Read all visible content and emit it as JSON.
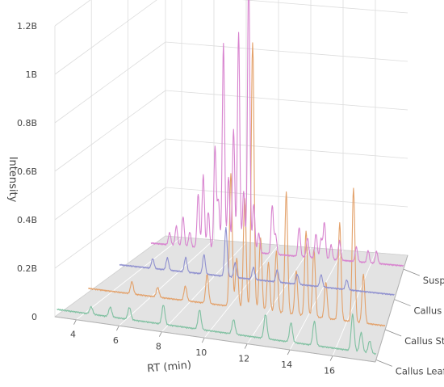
{
  "chart_data": {
    "type": "line",
    "subtype": "3d-waterfall",
    "title": "",
    "xlabel": "RT (min)",
    "ylabel": "Intensity",
    "x_range": [
      3,
      18
    ],
    "y_range": [
      0,
      1.2
    ],
    "x_ticks": [
      4,
      6,
      8,
      10,
      12,
      14,
      16
    ],
    "x_tick_labels": [
      "4",
      "6",
      "8",
      "10",
      "12",
      "14",
      "16"
    ],
    "y_ticks": [
      0,
      0.2,
      0.4,
      0.6,
      0.8,
      1.0,
      1.2
    ],
    "y_tick_labels": [
      "0",
      "0.2B",
      "0.4B",
      "0.6B",
      "0.8B",
      "1B",
      "1.2B"
    ],
    "y_unit_scale": "billions",
    "series": [
      {
        "name": "Susp Culture",
        "color": "#d884cf",
        "baseline": 0.01,
        "peaks": [
          [
            4.1,
            0.05
          ],
          [
            4.5,
            0.08
          ],
          [
            4.9,
            0.12
          ],
          [
            5.3,
            0.06
          ],
          [
            5.8,
            0.22
          ],
          [
            6.1,
            0.3
          ],
          [
            6.4,
            0.15
          ],
          [
            6.8,
            0.42
          ],
          [
            7.0,
            0.2
          ],
          [
            7.3,
            0.85
          ],
          [
            7.6,
            0.3
          ],
          [
            7.9,
            0.5
          ],
          [
            8.2,
            0.9
          ],
          [
            8.5,
            0.25
          ],
          [
            8.8,
            1.15
          ],
          [
            9.1,
            0.2
          ],
          [
            9.4,
            0.08
          ],
          [
            10.2,
            0.2
          ],
          [
            10.4,
            0.08
          ],
          [
            11.8,
            0.12
          ],
          [
            12.3,
            0.08
          ],
          [
            12.8,
            0.1
          ],
          [
            13.1,
            0.08
          ],
          [
            13.3,
            0.15
          ],
          [
            13.7,
            0.06
          ],
          [
            14.2,
            0.08
          ],
          [
            15.2,
            0.06
          ],
          [
            15.9,
            0.05
          ],
          [
            16.4,
            0.05
          ]
        ]
      },
      {
        "name": "Callus Root",
        "color": "#8f90cf",
        "baseline": 0.015,
        "peaks": [
          [
            4.8,
            0.04
          ],
          [
            5.6,
            0.05
          ],
          [
            6.6,
            0.06
          ],
          [
            7.6,
            0.08
          ],
          [
            8.8,
            0.2
          ],
          [
            9.3,
            0.06
          ],
          [
            10.3,
            0.05
          ],
          [
            11.6,
            0.05
          ],
          [
            12.7,
            0.04
          ],
          [
            14.0,
            0.05
          ],
          [
            15.4,
            0.04
          ]
        ]
      },
      {
        "name": "Callus Stem",
        "color": "#e3a16a",
        "baseline": 0.012,
        "peaks": [
          [
            5.2,
            0.05
          ],
          [
            6.5,
            0.04
          ],
          [
            7.9,
            0.06
          ],
          [
            9.0,
            0.12
          ],
          [
            10.2,
            0.55
          ],
          [
            10.5,
            0.2
          ],
          [
            10.9,
            0.45
          ],
          [
            11.3,
            1.1
          ],
          [
            11.7,
            0.3
          ],
          [
            12.1,
            0.2
          ],
          [
            12.5,
            0.25
          ],
          [
            13.0,
            0.5
          ],
          [
            13.5,
            0.18
          ],
          [
            14.0,
            0.35
          ],
          [
            14.4,
            0.28
          ],
          [
            15.0,
            0.15
          ],
          [
            15.7,
            0.4
          ],
          [
            16.4,
            0.55
          ],
          [
            16.9,
            0.2
          ]
        ]
      },
      {
        "name": "Callus Leaf",
        "color": "#7ec0a0",
        "baseline": 0.02,
        "peaks": [
          [
            4.6,
            0.03
          ],
          [
            5.5,
            0.04
          ],
          [
            6.4,
            0.05
          ],
          [
            8.0,
            0.08
          ],
          [
            9.7,
            0.08
          ],
          [
            11.3,
            0.06
          ],
          [
            12.8,
            0.1
          ],
          [
            14.0,
            0.08
          ],
          [
            15.1,
            0.1
          ],
          [
            16.9,
            0.15
          ],
          [
            17.3,
            0.08
          ],
          [
            17.7,
            0.05
          ]
        ]
      }
    ],
    "series_labels_side": "right",
    "grid": true,
    "floor_color": "#e3e3e3"
  }
}
